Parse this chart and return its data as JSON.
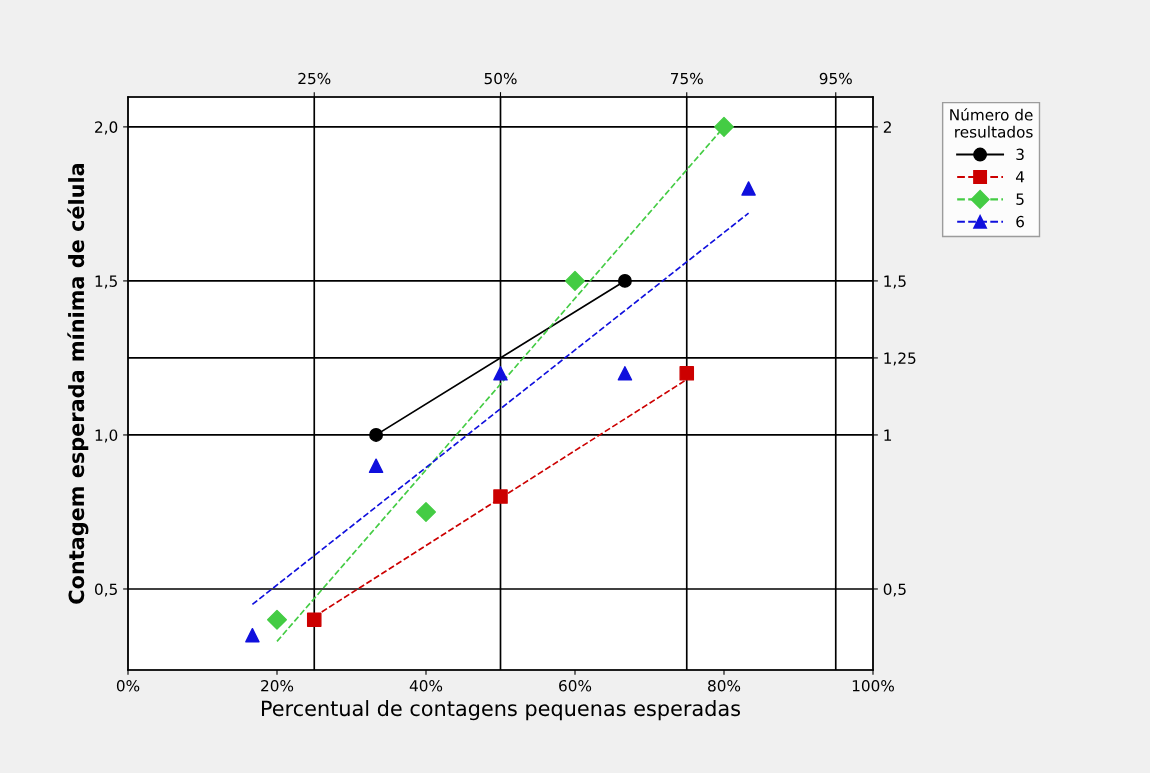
{
  "chart_data": {
    "type": "scatter",
    "xlabel": "Percentual de contagens pequenas esperadas",
    "ylabel": "Contagem esperada mínima de célula",
    "legend_title": "Número de\nresultados",
    "xlim": [
      0,
      100
    ],
    "ylim": [
      0.237,
      2.097
    ],
    "xticks": [
      {
        "value": 0,
        "label": "0%"
      },
      {
        "value": 20,
        "label": "20%"
      },
      {
        "value": 40,
        "label": "40%"
      },
      {
        "value": 60,
        "label": "60%"
      },
      {
        "value": 80,
        "label": "80%"
      },
      {
        "value": 100,
        "label": "100%"
      }
    ],
    "yticks": [
      {
        "value": 0.5,
        "label": "0,5"
      },
      {
        "value": 1.0,
        "label": "1,0"
      },
      {
        "value": 1.5,
        "label": "1,5"
      },
      {
        "value": 2.0,
        "label": "2,0"
      }
    ],
    "x2lim": [
      0,
      100
    ],
    "x2ticks": [
      {
        "value": 25,
        "label": "25%"
      },
      {
        "value": 50,
        "label": "50%"
      },
      {
        "value": 75,
        "label": "75%"
      },
      {
        "value": 95,
        "label": "95%"
      }
    ],
    "y2lim": [
      0.237,
      2.097
    ],
    "y2ticks": [
      {
        "value": 0.5,
        "label": "0,5"
      },
      {
        "value": 1,
        "label": "1"
      },
      {
        "value": 1.25,
        "label": "1,25"
      },
      {
        "value": 1.5,
        "label": "1,5"
      },
      {
        "value": 2,
        "label": "2"
      }
    ],
    "grid": true,
    "legend": "top right",
    "series": [
      {
        "name": "3",
        "type": "line",
        "color": "#000000",
        "marker": "circle",
        "line_style": "solid",
        "x": [
          33.3,
          66.7
        ],
        "values": [
          1.0,
          1.5
        ]
      },
      {
        "name": "4",
        "color": "#cc0000",
        "marker": "square",
        "line_style": "dashed",
        "x": [
          25,
          50,
          75
        ],
        "values": [
          0.4,
          0.8,
          1.2
        ]
      },
      {
        "name": "5",
        "color": "#44cc44",
        "marker": "diamond",
        "line_style": "dashed",
        "x": [
          20,
          40,
          60,
          80
        ],
        "values": [
          0.4,
          0.75,
          1.5,
          2.0
        ]
      },
      {
        "name": "6",
        "color": "#1010dd",
        "marker": "triangle",
        "line_style": "dashed",
        "x": [
          16.7,
          33.3,
          50,
          66.7,
          83.3
        ],
        "values": [
          0.35,
          0.9,
          1.2,
          1.2,
          1.8
        ]
      },
      {
        "type": "line",
        "color": "#cc0000",
        "marker": "none",
        "line_style": "dashed",
        "x": [
          25,
          75
        ],
        "values": [
          0.41,
          1.18
        ]
      },
      {
        "type": "line",
        "color": "#44cc44",
        "marker": "none",
        "line_style": "dashed",
        "x": [
          20,
          80
        ],
        "values": [
          0.33,
          2.0
        ]
      },
      {
        "type": "line",
        "color": "#1010dd",
        "marker": "none",
        "line_style": "dashed",
        "x": [
          16.7,
          83.3
        ],
        "values": [
          0.45,
          1.72
        ]
      }
    ]
  }
}
